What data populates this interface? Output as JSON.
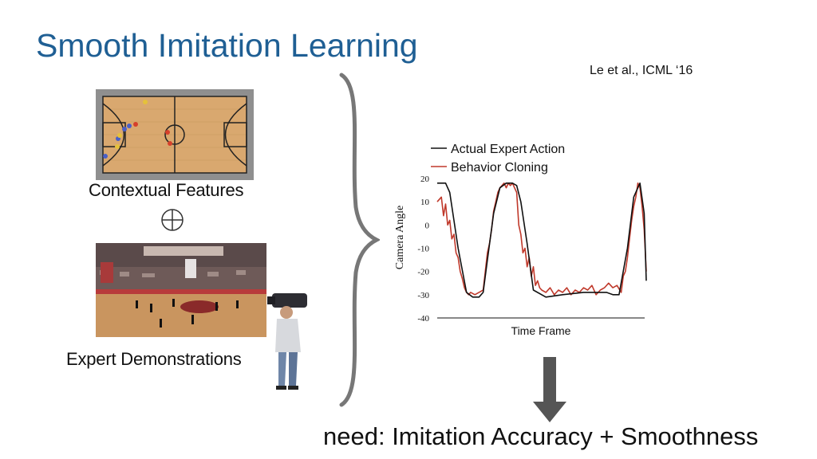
{
  "slide": {
    "title": "Smooth Imitation Learning",
    "citation": "Le et al., ICML ‘16",
    "contextual_caption": "Contextual Features",
    "expert_caption": "Expert Demonstrations",
    "operator_symbol": "⊕",
    "bottom_text": "need: Imitation Accuracy + Smoothness"
  },
  "icons": {
    "court": "basketball-court-diagram-icon",
    "arena": "basketball-arena-photo-icon",
    "camera": "camera-operator-icon",
    "brace": "right-curly-brace-icon",
    "arrow": "down-arrow-icon"
  },
  "colors": {
    "title": "#1f5f94",
    "expert_line": "#111111",
    "bc_line": "#c0392b",
    "arrow": "#555555"
  },
  "chart_data": {
    "type": "line",
    "title": "",
    "xlabel": "Time Frame",
    "ylabel": "Camera Angle",
    "ylim": [
      -40,
      20
    ],
    "yticks": [
      20,
      10,
      0,
      -10,
      -20,
      -30,
      -40
    ],
    "xlim": [
      0,
      100
    ],
    "legend_position": "top-left",
    "grid": false,
    "series": [
      {
        "name": "Actual Expert Action",
        "color": "#111111",
        "x": [
          0,
          4,
          6,
          10,
          14,
          17,
          20,
          22,
          24,
          27,
          30,
          33,
          36,
          38,
          40,
          43,
          46,
          52,
          60,
          70,
          78,
          81,
          84,
          87,
          91,
          94,
          97,
          99,
          100
        ],
        "y": [
          18,
          18,
          14,
          -10,
          -29,
          -31,
          -31,
          -29,
          -15,
          5,
          16,
          18,
          18,
          17,
          10,
          -8,
          -28,
          -31,
          -30,
          -29,
          -29,
          -29,
          -30,
          -30,
          -10,
          12,
          18,
          5,
          -24
        ]
      },
      {
        "name": "Behavior Cloning",
        "color": "#c0392b",
        "x": [
          0,
          2,
          3,
          4,
          5,
          6,
          7,
          8,
          9,
          10,
          11,
          12,
          13,
          14,
          15,
          16,
          18,
          20,
          22,
          24,
          25,
          26,
          27,
          28,
          29,
          30,
          31,
          32,
          33,
          34,
          35,
          36,
          37,
          38,
          39,
          40,
          41,
          42,
          43,
          44,
          45,
          46,
          47,
          48,
          49,
          50,
          52,
          54,
          56,
          58,
          60,
          62,
          64,
          66,
          68,
          70,
          72,
          74,
          76,
          78,
          80,
          82,
          84,
          86,
          88,
          89,
          90,
          91,
          92,
          93,
          94,
          95,
          96,
          97,
          98,
          99,
          100
        ],
        "y": [
          10,
          12,
          4,
          9,
          0,
          2,
          -6,
          -4,
          -12,
          -14,
          -20,
          -23,
          -27,
          -29,
          -30,
          -29,
          -30,
          -29,
          -28,
          -12,
          -8,
          -2,
          6,
          10,
          14,
          16,
          17,
          18,
          16,
          18,
          17,
          18,
          16,
          14,
          0,
          -4,
          -12,
          -10,
          -18,
          -14,
          -22,
          -18,
          -26,
          -24,
          -27,
          -28,
          -29,
          -27,
          -30,
          -28,
          -29,
          -27,
          -30,
          -28,
          -29,
          -27,
          -28,
          -26,
          -30,
          -28,
          -27,
          -25,
          -27,
          -26,
          -29,
          -22,
          -20,
          -14,
          -6,
          2,
          8,
          12,
          18,
          16,
          8,
          -2,
          -20
        ]
      }
    ]
  }
}
